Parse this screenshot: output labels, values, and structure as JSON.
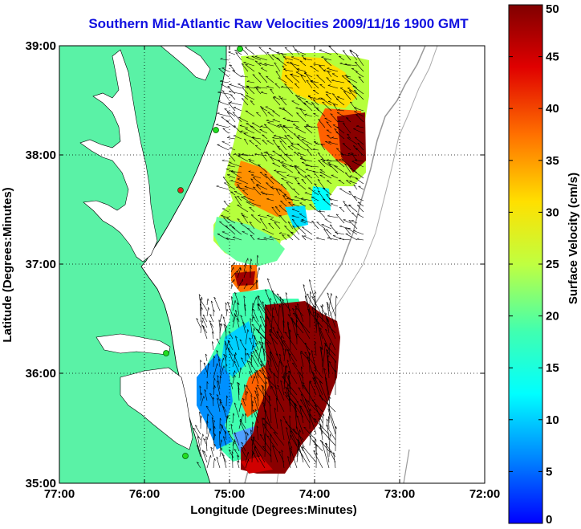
{
  "title": "Southern Mid-Atlantic Raw Velocities 2009/11/16 1900 GMT",
  "x_axis": {
    "label": "Longitude (Degrees:Minutes)",
    "ticks": [
      "77:00",
      "76:00",
      "75:00",
      "74:00",
      "73:00",
      "72:00"
    ]
  },
  "y_axis": {
    "label": "Latitude (Degrees:Minutes)",
    "ticks": [
      "39:00",
      "38:00",
      "37:00",
      "36:00",
      "35:00"
    ]
  },
  "colorbar": {
    "label": "Surface Velocity (cm/s)",
    "ticks": [
      "0",
      "5",
      "10",
      "15",
      "20",
      "25",
      "30",
      "35",
      "40",
      "45",
      "50"
    ],
    "min": 0,
    "max": 50,
    "colormap": "jet"
  },
  "map": {
    "lon_range": [
      -77,
      -72
    ],
    "lat_range": [
      35,
      39
    ],
    "grid": "dotted",
    "land_color": "#5af2a6",
    "ocean_color": "#ffffff",
    "bathymetry_contour_color": "#999999",
    "station_color": "#22dd22",
    "stations": 5
  }
}
